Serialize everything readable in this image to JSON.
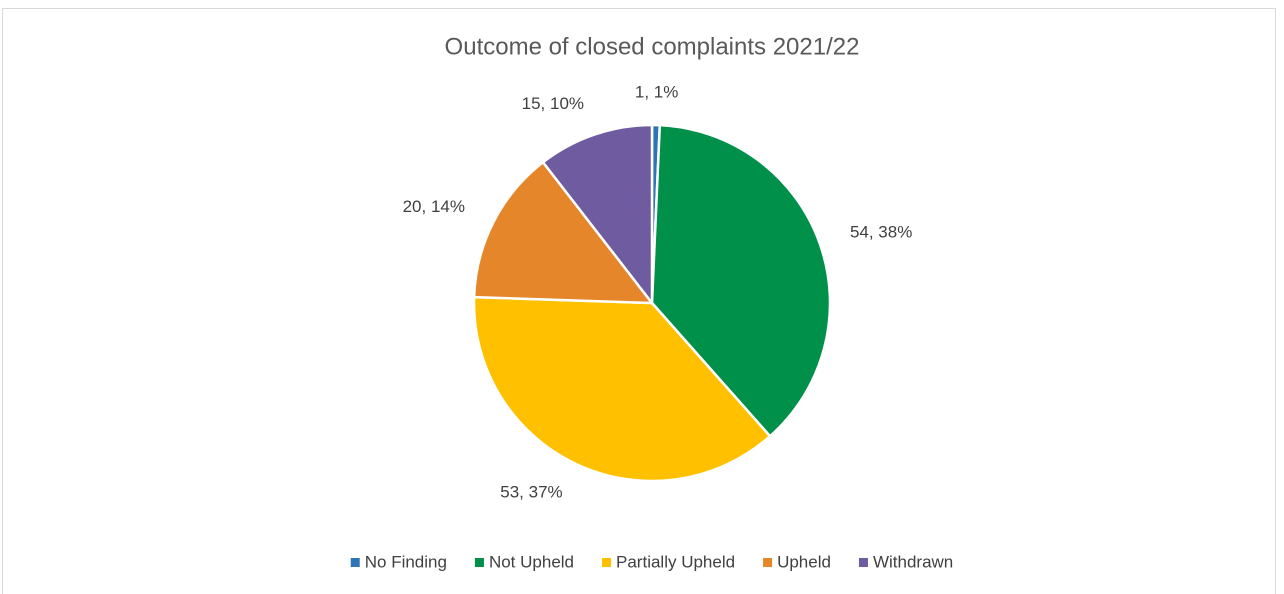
{
  "chart_data": {
    "type": "pie",
    "title": "Outcome of closed complaints 2021/22",
    "categories": [
      "No Finding",
      "Not Upheld",
      "Partially Upheld",
      "Upheld",
      "Withdrawn"
    ],
    "values": [
      1,
      54,
      53,
      20,
      15
    ],
    "value_labels": [
      "1, 1%",
      "54, 38%",
      "53, 37%",
      "20, 14%",
      "15, 10%"
    ],
    "colors": [
      "#2e75b6",
      "#00904a",
      "#ffc000",
      "#e5862a",
      "#6f5ba0"
    ],
    "legend": "bottom"
  }
}
